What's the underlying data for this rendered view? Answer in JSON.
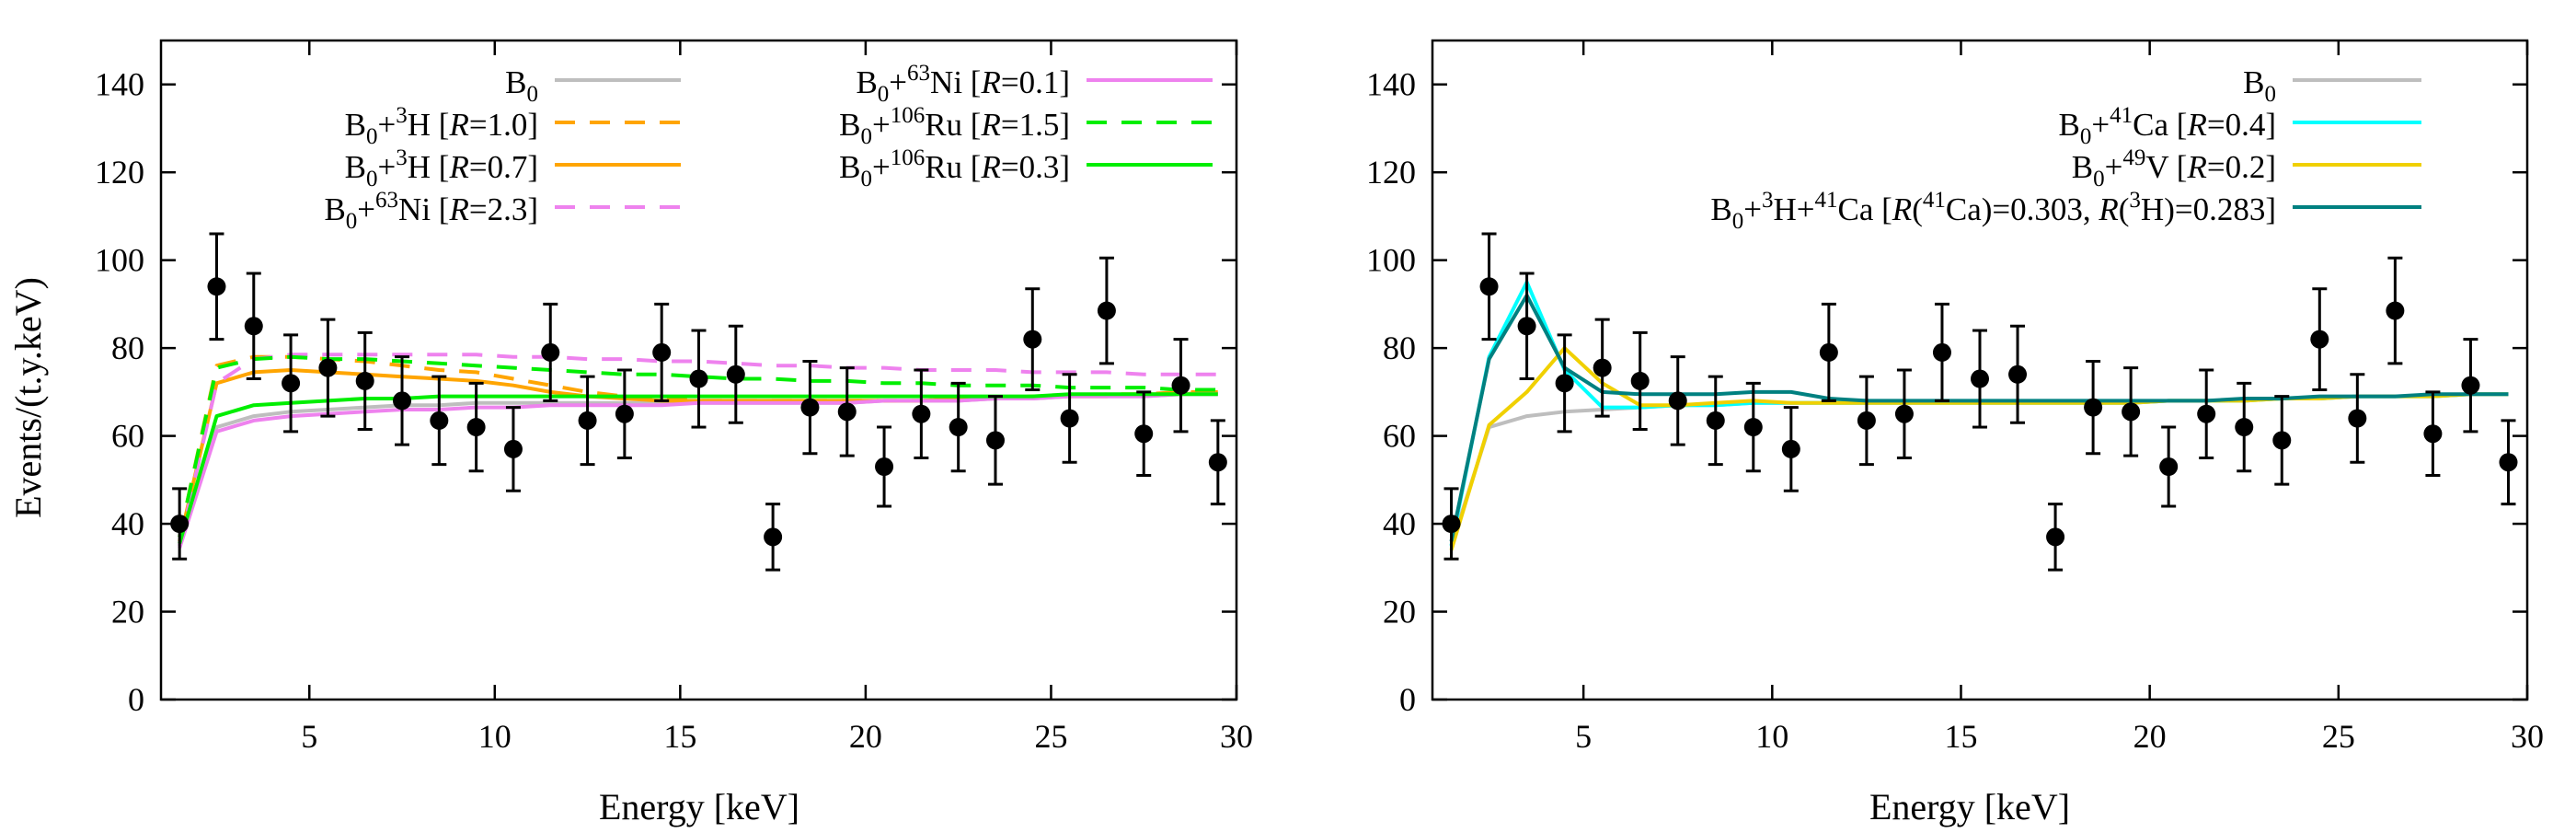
{
  "ylabel": "Events/(t.y.keV)",
  "xlabel": "Energy [keV]",
  "chart_data": [
    {
      "type": "line",
      "panel": "left",
      "title": "",
      "xlabel": "Energy [keV]",
      "ylabel": "Events/(t.y.keV)",
      "xlim": [
        1,
        30
      ],
      "ylim": [
        0,
        150
      ],
      "xticks": [
        5,
        10,
        15,
        20,
        25,
        30
      ],
      "yticks": [
        0,
        20,
        40,
        60,
        80,
        100,
        120,
        140
      ],
      "legend_position": "top",
      "data_points": {
        "name": "data",
        "x": [
          1.5,
          2.5,
          3.5,
          4.5,
          5.5,
          6.5,
          7.5,
          8.5,
          9.5,
          10.5,
          11.5,
          12.5,
          13.5,
          14.5,
          15.5,
          16.5,
          17.5,
          18.5,
          19.5,
          20.5,
          21.5,
          22.5,
          23.5,
          24.5,
          25.5,
          26.5,
          27.5,
          28.5,
          29.5
        ],
        "y": [
          40,
          94,
          85,
          72,
          75.5,
          72.5,
          68,
          63.5,
          62,
          57,
          79,
          63.5,
          65,
          79,
          73,
          74,
          37,
          66.5,
          65.5,
          53,
          65,
          62,
          59,
          82,
          64,
          88.5,
          60.5,
          71.5,
          54
        ],
        "yerr": [
          8,
          12,
          12,
          11,
          11,
          11,
          10,
          10,
          10,
          9.5,
          11,
          10,
          10,
          11,
          11,
          11,
          7.5,
          10.5,
          10,
          9,
          10,
          10,
          10,
          11.5,
          10,
          12,
          9.5,
          10.5,
          9.5
        ]
      },
      "series": [
        {
          "name": "B0",
          "label_base": "B",
          "label_sub": "0",
          "label_sup": "",
          "label_el": "",
          "label_r": "",
          "color": "#bebebe",
          "dash": "solid",
          "x": [
            1.5,
            2.5,
            3.5,
            4.5,
            5.5,
            6.5,
            7.5,
            8.5,
            9.5,
            10.5,
            11.5,
            12.5,
            13.5,
            14.5,
            15.5,
            16.5,
            17.5,
            18.5,
            19.5,
            20.5,
            21.5,
            22.5,
            23.5,
            24.5,
            25.5,
            26.5,
            27.5,
            28.5,
            29.5
          ],
          "y": [
            35,
            62,
            64.5,
            65.5,
            66,
            66.5,
            67,
            67,
            67.5,
            67.5,
            67.5,
            67.5,
            67.5,
            67.5,
            67.5,
            67.5,
            67.5,
            67.5,
            67.5,
            68,
            68,
            68,
            68.5,
            68.5,
            69,
            69,
            69,
            69.5,
            69.5
          ]
        },
        {
          "name": "B0+3H R=1.0",
          "label_base": "B",
          "label_sub": "0",
          "label_sup": "3",
          "label_el": "H",
          "label_r": "=1.0]",
          "color": "#ffa500",
          "dash": "dashed",
          "x": [
            1.5,
            2.5,
            3.5,
            4.5,
            5.5,
            6.5,
            7.5,
            8.5,
            9.5,
            10.5,
            11.5,
            12.5,
            13.5,
            14.5,
            15.5,
            16.5,
            17.5,
            18.5,
            19.5,
            20.5,
            21.5,
            22.5,
            23.5,
            24.5,
            25.5,
            26.5,
            27.5,
            28.5,
            29.5
          ],
          "y": [
            37,
            76,
            78,
            78,
            77.5,
            77,
            76,
            75,
            74.5,
            73,
            71.5,
            70,
            69,
            68.5,
            68,
            68,
            68,
            68,
            68,
            68,
            68,
            68.5,
            68.5,
            69,
            69,
            69.5,
            69.5,
            70,
            70
          ]
        },
        {
          "name": "B0+3H R=0.7",
          "label_base": "B",
          "label_sub": "0",
          "label_sup": "3",
          "label_el": "H",
          "label_r": "=0.7]",
          "color": "#ffa500",
          "dash": "solid",
          "x": [
            1.5,
            2.5,
            3.5,
            4.5,
            5.5,
            6.5,
            7.5,
            8.5,
            9.5,
            10.5,
            11.5,
            12.5,
            13.5,
            14.5,
            15.5,
            16.5,
            17.5,
            18.5,
            19.5,
            20.5,
            21.5,
            22.5,
            23.5,
            24.5,
            25.5,
            26.5,
            27.5,
            28.5,
            29.5
          ],
          "y": [
            36,
            72,
            74.5,
            75,
            74.5,
            74,
            73.5,
            73,
            72.5,
            71.5,
            70,
            69,
            68.5,
            68,
            68,
            68,
            68,
            68,
            68,
            68,
            68,
            68.5,
            68.5,
            69,
            69,
            69,
            69.5,
            69.5,
            70
          ]
        },
        {
          "name": "B0+63Ni R=2.3",
          "label_base": "B",
          "label_sub": "0",
          "label_sup": "63",
          "label_el": "Ni",
          "label_r": "=2.3]",
          "color": "#ee82ee",
          "dash": "dashed",
          "x": [
            1.5,
            2.5,
            3.5,
            4.5,
            5.5,
            6.5,
            7.5,
            8.5,
            9.5,
            10.5,
            11.5,
            12.5,
            13.5,
            14.5,
            15.5,
            16.5,
            17.5,
            18.5,
            19.5,
            20.5,
            21.5,
            22.5,
            23.5,
            24.5,
            25.5,
            26.5,
            27.5,
            28.5,
            29.5
          ],
          "y": [
            35,
            72,
            77.5,
            78.5,
            78.5,
            78.5,
            78.5,
            78.5,
            78.5,
            78,
            78,
            77.5,
            77.5,
            77,
            77,
            76.5,
            76,
            76,
            75.5,
            75.5,
            75,
            75,
            75,
            74.5,
            74.5,
            74.5,
            74,
            74,
            74
          ]
        },
        {
          "name": "B0+63Ni R=0.1",
          "label_base": "B",
          "label_sub": "0",
          "label_sup": "63",
          "label_el": "Ni",
          "label_r": "=0.1]",
          "color": "#ee82ee",
          "dash": "solid",
          "x": [
            1.5,
            2.5,
            3.5,
            4.5,
            5.5,
            6.5,
            7.5,
            8.5,
            9.5,
            10.5,
            11.5,
            12.5,
            13.5,
            14.5,
            15.5,
            16.5,
            17.5,
            18.5,
            19.5,
            20.5,
            21.5,
            22.5,
            23.5,
            24.5,
            25.5,
            26.5,
            27.5,
            28.5,
            29.5
          ],
          "y": [
            34.5,
            61,
            63.5,
            64.5,
            65,
            65.5,
            66,
            66,
            66.5,
            66.5,
            67,
            67,
            67,
            67,
            67.5,
            67.5,
            67.5,
            67.5,
            67.5,
            68,
            68,
            68,
            68.5,
            68.5,
            69,
            69,
            69,
            69.5,
            69.5
          ]
        },
        {
          "name": "B0+106Ru R=1.5",
          "label_base": "B",
          "label_sub": "0",
          "label_sup": "106",
          "label_el": "Ru",
          "label_r": "=1.5]",
          "color": "#00ee00",
          "dash": "dashed",
          "x": [
            1.5,
            2.5,
            3.5,
            4.5,
            5.5,
            6.5,
            7.5,
            8.5,
            9.5,
            10.5,
            11.5,
            12.5,
            13.5,
            14.5,
            15.5,
            16.5,
            17.5,
            18.5,
            19.5,
            20.5,
            21.5,
            22.5,
            23.5,
            24.5,
            25.5,
            26.5,
            27.5,
            28.5,
            29.5
          ],
          "y": [
            37,
            75.5,
            77.5,
            78,
            77.5,
            77.5,
            77,
            76.5,
            76,
            75.5,
            75,
            74.5,
            74,
            74,
            73.5,
            73,
            73,
            72.5,
            72.5,
            72,
            72,
            71.5,
            71.5,
            71.5,
            71,
            71,
            71,
            70.5,
            70.5
          ]
        },
        {
          "name": "B0+106Ru R=0.3",
          "label_base": "B",
          "label_sub": "0",
          "label_sup": "106",
          "label_el": "Ru",
          "label_r": "=0.3]",
          "color": "#00ee00",
          "dash": "solid",
          "x": [
            1.5,
            2.5,
            3.5,
            4.5,
            5.5,
            6.5,
            7.5,
            8.5,
            9.5,
            10.5,
            11.5,
            12.5,
            13.5,
            14.5,
            15.5,
            16.5,
            17.5,
            18.5,
            19.5,
            20.5,
            21.5,
            22.5,
            23.5,
            24.5,
            25.5,
            26.5,
            27.5,
            28.5,
            29.5
          ],
          "y": [
            35.5,
            64.5,
            67,
            67.5,
            68,
            68.5,
            68.5,
            69,
            69,
            69,
            69,
            69,
            69,
            69,
            69,
            69,
            69,
            69,
            69,
            69,
            69,
            69,
            69,
            69,
            69.5,
            69.5,
            69.5,
            69.5,
            69.5
          ]
        }
      ]
    },
    {
      "type": "line",
      "panel": "right",
      "title": "",
      "xlabel": "Energy [keV]",
      "ylabel": "",
      "xlim": [
        1,
        30
      ],
      "ylim": [
        0,
        150
      ],
      "xticks": [
        5,
        10,
        15,
        20,
        25,
        30
      ],
      "yticks": [
        0,
        20,
        40,
        60,
        80,
        100,
        120,
        140
      ],
      "legend_position": "top-right",
      "data_points": {
        "name": "data",
        "x": [
          1.5,
          2.5,
          3.5,
          4.5,
          5.5,
          6.5,
          7.5,
          8.5,
          9.5,
          10.5,
          11.5,
          12.5,
          13.5,
          14.5,
          15.5,
          16.5,
          17.5,
          18.5,
          19.5,
          20.5,
          21.5,
          22.5,
          23.5,
          24.5,
          25.5,
          26.5,
          27.5,
          28.5,
          29.5
        ],
        "y": [
          40,
          94,
          85,
          72,
          75.5,
          72.5,
          68,
          63.5,
          62,
          57,
          79,
          63.5,
          65,
          79,
          73,
          74,
          37,
          66.5,
          65.5,
          53,
          65,
          62,
          59,
          82,
          64,
          88.5,
          60.5,
          71.5,
          54
        ],
        "yerr": [
          8,
          12,
          12,
          11,
          11,
          11,
          10,
          10,
          10,
          9.5,
          11,
          10,
          10,
          11,
          11,
          11,
          7.5,
          10.5,
          10,
          9,
          10,
          10,
          10,
          11.5,
          10,
          12,
          9.5,
          10.5,
          9.5
        ]
      },
      "series": [
        {
          "name": "B0",
          "color": "#bebebe",
          "dash": "solid",
          "x": [
            1.5,
            2.5,
            3.5,
            4.5,
            5.5,
            6.5,
            7.5,
            8.5,
            9.5,
            10.5,
            11.5,
            12.5,
            13.5,
            14.5,
            15.5,
            16.5,
            17.5,
            18.5,
            19.5,
            20.5,
            21.5,
            22.5,
            23.5,
            24.5,
            25.5,
            26.5,
            27.5,
            28.5,
            29.5
          ],
          "y": [
            35,
            62,
            64.5,
            65.5,
            66,
            66.5,
            67,
            67,
            67.5,
            67.5,
            67.5,
            67.5,
            67.5,
            67.5,
            67.5,
            67.5,
            67.5,
            67.5,
            67.5,
            68,
            68,
            68,
            68.5,
            68.5,
            69,
            69,
            69,
            69.5,
            69.5
          ]
        },
        {
          "name": "B0+41Ca R=0.4",
          "color": "#00ffff",
          "dash": "solid",
          "x": [
            1.5,
            2.5,
            3.5,
            4.5,
            5.5,
            6.5,
            7.5,
            8.5,
            9.5,
            10.5,
            11.5,
            12.5,
            13.5,
            14.5,
            15.5,
            16.5,
            17.5,
            18.5,
            19.5,
            20.5,
            21.5,
            22.5,
            23.5,
            24.5,
            25.5,
            26.5,
            27.5,
            28.5,
            29.5
          ],
          "y": [
            35,
            78,
            95,
            75,
            66.5,
            66.5,
            67,
            67,
            67.5,
            67.5,
            67.5,
            67.5,
            67.5,
            67.5,
            67.5,
            67.5,
            67.5,
            67.5,
            67.5,
            68,
            68,
            68,
            68.5,
            68.5,
            69,
            69,
            69,
            69.5,
            69.5
          ]
        },
        {
          "name": "B0+49V R=0.2",
          "color": "#f0d000",
          "dash": "solid",
          "x": [
            1.5,
            2.5,
            3.5,
            4.5,
            5.5,
            6.5,
            7.5,
            8.5,
            9.5,
            10.5,
            11.5,
            12.5,
            13.5,
            14.5,
            15.5,
            16.5,
            17.5,
            18.5,
            19.5,
            20.5,
            21.5,
            22.5,
            23.5,
            24.5,
            25.5,
            26.5,
            27.5,
            28.5,
            29.5
          ],
          "y": [
            34,
            62.5,
            70,
            80,
            72,
            67,
            67,
            67.5,
            68,
            67.5,
            67.5,
            67.5,
            67.5,
            67.5,
            67.5,
            67.5,
            67.5,
            67.5,
            67.5,
            68,
            68,
            68,
            68.5,
            68.5,
            69,
            69,
            69,
            69.5,
            69.5
          ]
        },
        {
          "name": "B0+3H+41Ca",
          "color": "#008080",
          "dash": "solid",
          "x": [
            1.5,
            2.5,
            3.5,
            4.5,
            5.5,
            6.5,
            7.5,
            8.5,
            9.5,
            10.5,
            11.5,
            12.5,
            13.5,
            14.5,
            15.5,
            16.5,
            17.5,
            18.5,
            19.5,
            20.5,
            21.5,
            22.5,
            23.5,
            24.5,
            25.5,
            26.5,
            27.5,
            28.5,
            29.5
          ],
          "y": [
            36,
            77.5,
            92,
            75.5,
            70,
            69.5,
            69.5,
            69.5,
            70,
            70,
            68.5,
            68,
            68,
            68,
            68,
            68,
            68,
            68,
            68,
            68,
            68,
            68.5,
            68.5,
            69,
            69,
            69,
            69.5,
            69.5,
            69.5
          ]
        }
      ]
    }
  ],
  "legend_text": {
    "B": "B",
    "sub0": "0",
    "plus": "+",
    "open": " [",
    "R": "R",
    "sup3": "3",
    "H": "H",
    "sup63": "63",
    "Ni": "Ni",
    "sup106": "106",
    "Ru": "Ru",
    "r10": "=1.0]",
    "r07": "=0.7]",
    "r23": "=2.3]",
    "r01": "=0.1]",
    "r15": "=1.5]",
    "r03": "=0.3]",
    "sup41": "41",
    "Ca": "Ca",
    "r04": "=0.4]",
    "sup49": "49",
    "V": "V",
    "r02": "=0.2]",
    "combo_a": "H+",
    "combo_b": " [",
    "combo_c": "(",
    "combo_d": "Ca)=0.303, ",
    "combo_e": "(",
    "combo_f": "H)=0.283]"
  }
}
